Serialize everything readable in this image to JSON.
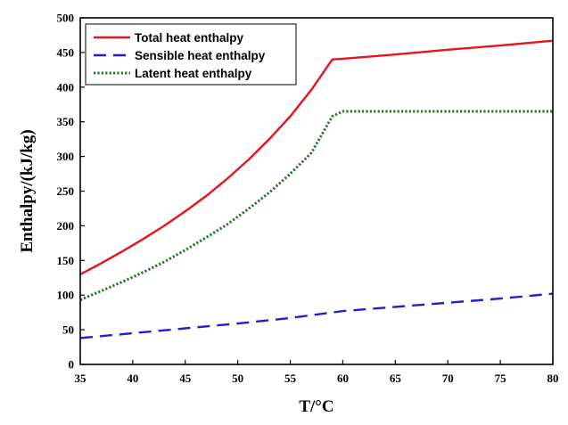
{
  "chart_data": {
    "type": "line",
    "xlabel": "T/°C",
    "ylabel": "Enthalpy/(kJ/kg)",
    "xlim": [
      35,
      80
    ],
    "ylim": [
      0,
      500
    ],
    "xticks": [
      35,
      40,
      45,
      50,
      55,
      60,
      65,
      70,
      75,
      80
    ],
    "yticks": [
      0,
      50,
      100,
      150,
      200,
      250,
      300,
      350,
      400,
      450,
      500
    ],
    "legend_position": "top-left",
    "grid": false,
    "series": [
      {
        "name": "Total heat enthalpy",
        "color": "#e8141b",
        "style": "solid",
        "x": [
          35,
          37,
          39,
          41,
          43,
          45,
          47,
          49,
          51,
          53,
          55,
          57,
          59,
          60,
          65,
          70,
          75,
          80
        ],
        "y": [
          130,
          146,
          163,
          181,
          200,
          221,
          243,
          268,
          295,
          325,
          358,
          396,
          440,
          441,
          447,
          454,
          460,
          467
        ]
      },
      {
        "name": "Sensible heat enthalpy",
        "color": "#1f1fd6",
        "style": "dashed",
        "x": [
          35,
          40,
          45,
          50,
          55,
          60,
          65,
          70,
          75,
          80
        ],
        "y": [
          38,
          45,
          52,
          59,
          67,
          77,
          83,
          89,
          95,
          102
        ]
      },
      {
        "name": "Latent heat enthalpy",
        "color": "#1f7a1f",
        "style": "dotted",
        "x": [
          35,
          37,
          39,
          41,
          43,
          45,
          47,
          49,
          51,
          53,
          55,
          57,
          59,
          60,
          65,
          70,
          75,
          80
        ],
        "y": [
          93,
          106,
          119,
          133,
          148,
          165,
          183,
          202,
          224,
          248,
          275,
          305,
          358,
          365,
          365,
          365,
          365,
          365
        ]
      }
    ]
  }
}
